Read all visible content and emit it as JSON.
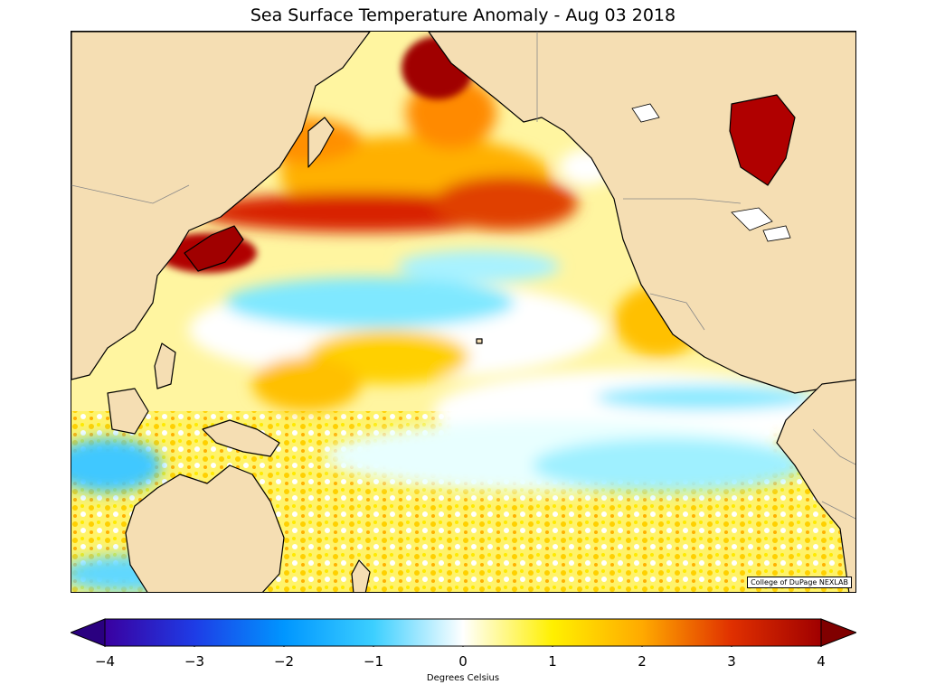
{
  "title": "Sea Surface Temperature Anomaly - Aug 03 2018",
  "credit": "College of DuPage NEXLAB",
  "colorbar": {
    "label": "Degrees Celsius",
    "min": -4,
    "max": 4,
    "extend": "both",
    "ticks": [
      "−4",
      "−3",
      "−2",
      "−1",
      "0",
      "1",
      "2",
      "3",
      "4"
    ],
    "colors": [
      "#3a00a0",
      "#1e3ce6",
      "#0096ff",
      "#3ccfff",
      "#ffffff",
      "#fff000",
      "#ffaa00",
      "#e03000",
      "#a00000"
    ]
  },
  "colors": {
    "land": "#f5deb3",
    "coastline": "#000000",
    "borders": "#888888"
  }
}
